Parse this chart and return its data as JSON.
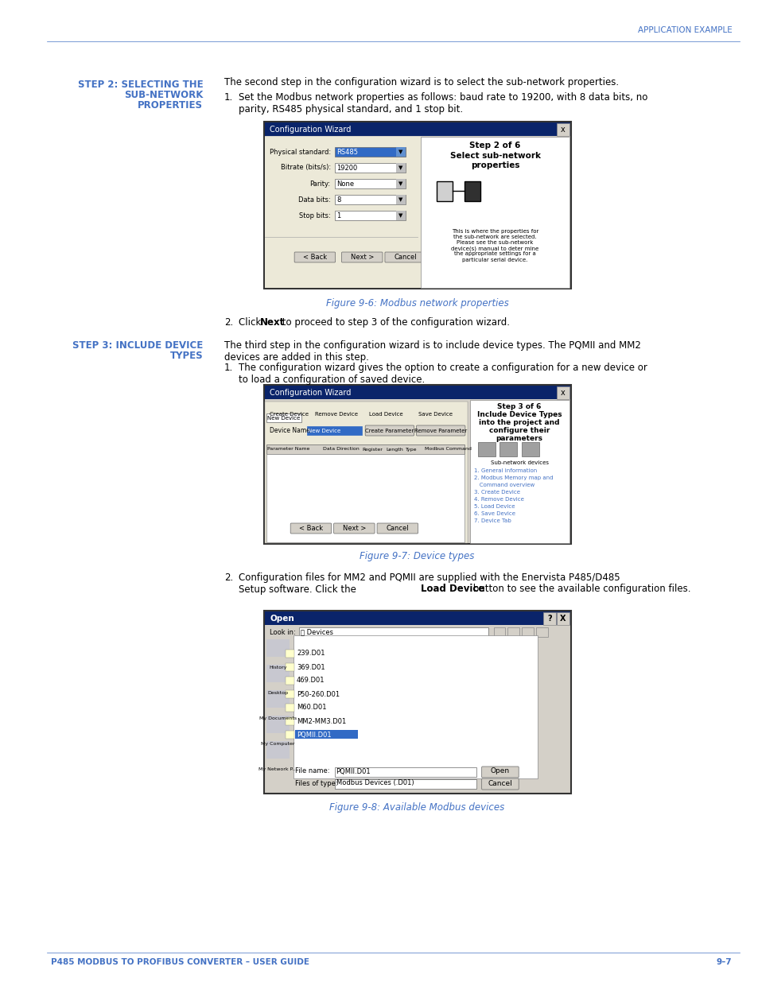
{
  "bg_color": "#ffffff",
  "header_color": "#4472c4",
  "title_right": "APPLICATION EXAMPLE",
  "footer_left": "P485 MODBUS TO PROFIBUS CONVERTER – USER GUIDE",
  "footer_right": "9–7",
  "step2_heading_line1": "STEP 2: SELECTING THE",
  "step2_heading_line2": "SUB-NETWORK",
  "step2_heading_line3": "PROPERTIES",
  "step2_intro": "The second step in the configuration wizard is to select the sub-network properties.",
  "step2_item1": "Set the Modbus network properties as follows: baud rate to 19200, with 8 data bits, no\nparity, RS485 physical standard, and 1 stop bit.",
  "fig6_caption": "Figure 9-6: Modbus network properties",
  "step2_item2_pre": "Click ",
  "step2_item2_bold": "Next",
  "step2_item2_post": " to proceed to step 3 of the configuration wizard.",
  "step3_heading_line1": "STEP 3: INCLUDE DEVICE",
  "step3_heading_line2": "TYPES",
  "step3_intro": "The third step in the configuration wizard is to include device types. The PQMII and MM2\ndevices are added in this step.",
  "step3_item1": "The configuration wizard gives the option to create a configuration for a new device or\nto load a configuration of saved device.",
  "fig7_caption": "Figure 9-7: Device types",
  "step3_item2_pre": "Configuration files for MM2 and PQMII are supplied with the Enervista P485/D485\nSetup software. Click the ",
  "step3_item2_bold": "Load Device",
  "step3_item2_post": " button to see the available configuration files.",
  "fig8_caption": "Figure 9-8: Available Modbus devices",
  "heading_font_color": "#4472c4",
  "body_font_color": "#000000",
  "caption_color": "#4472c4"
}
